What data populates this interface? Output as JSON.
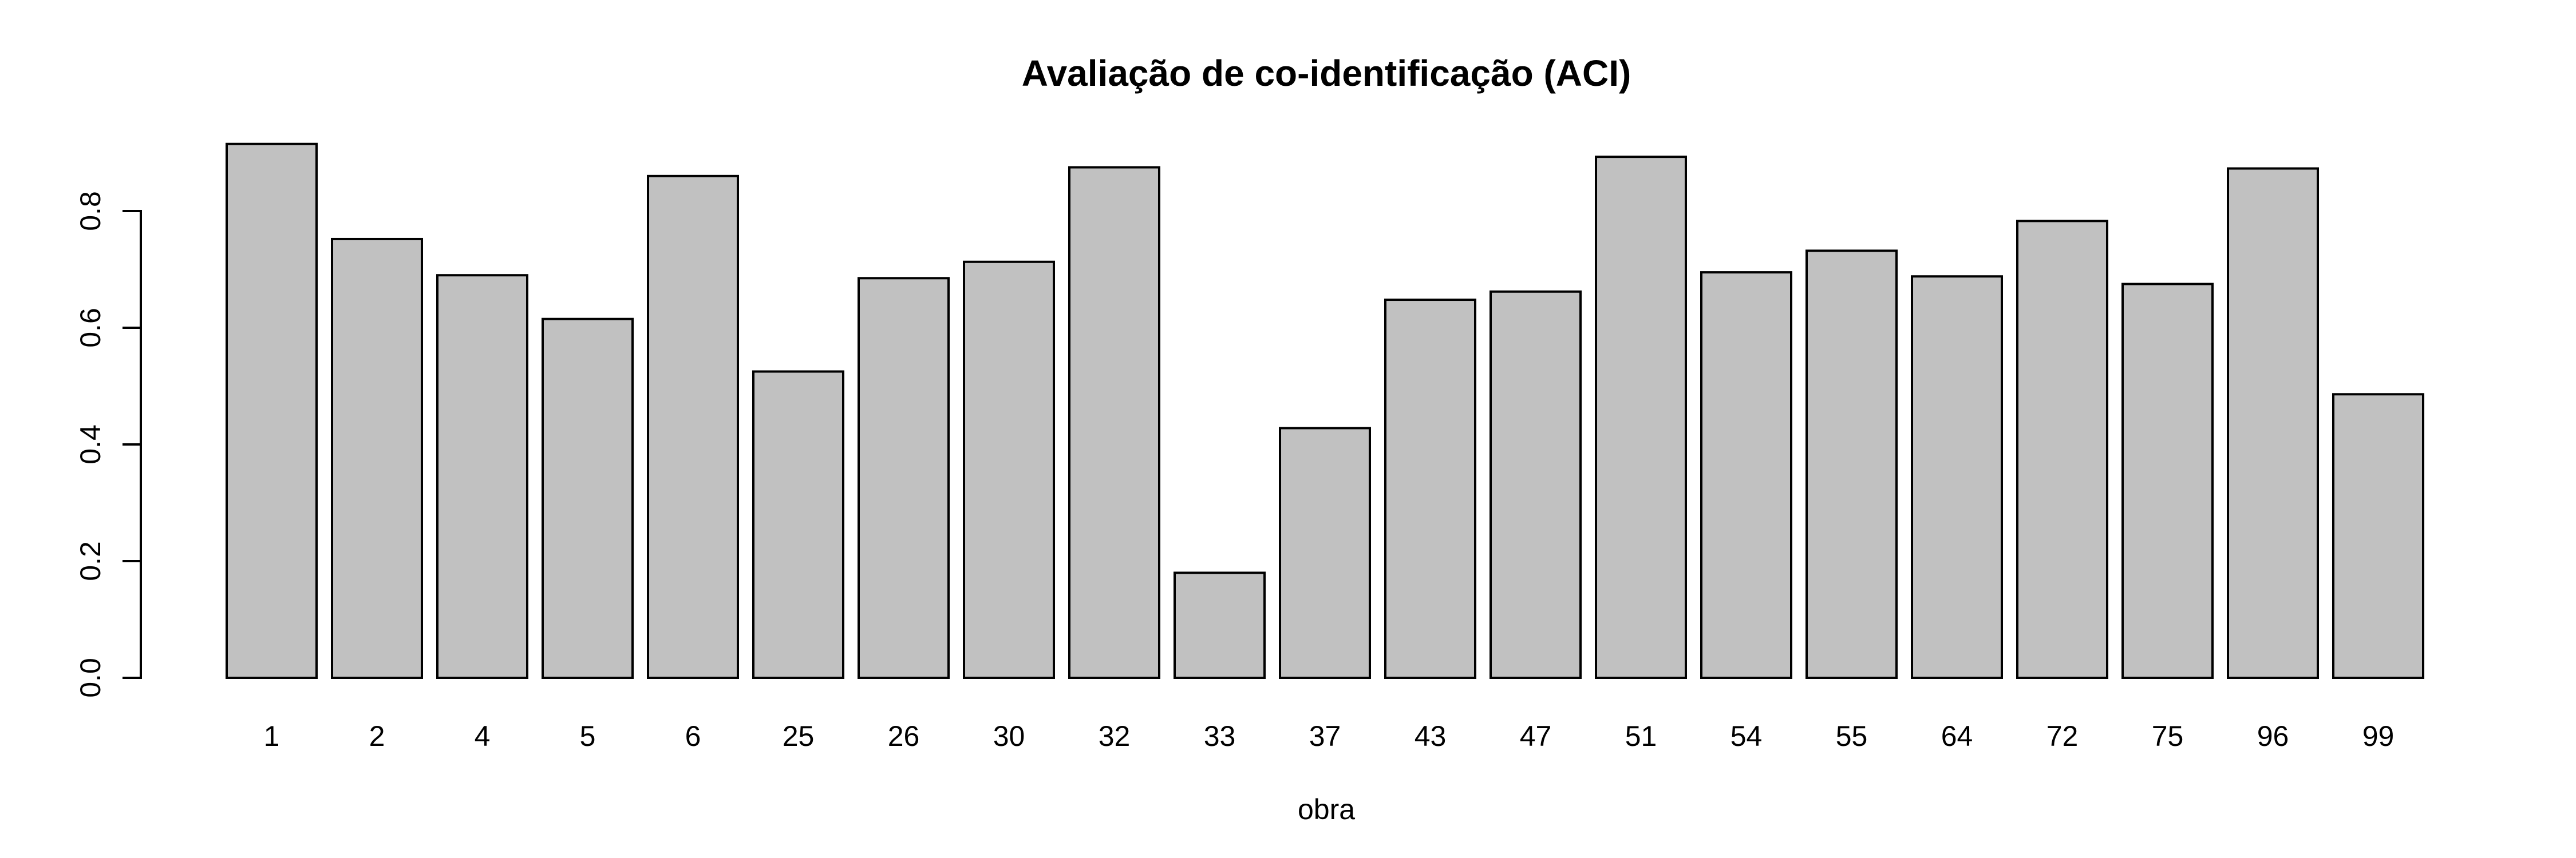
{
  "chart_data": {
    "type": "bar",
    "title": "Avaliação de co-identificação (ACI)",
    "xlabel": "obra",
    "ylabel": "",
    "categories": [
      "1",
      "2",
      "4",
      "5",
      "6",
      "25",
      "26",
      "30",
      "32",
      "33",
      "37",
      "43",
      "47",
      "51",
      "54",
      "55",
      "64",
      "72",
      "75",
      "96",
      "99"
    ],
    "values": [
      0.915,
      0.752,
      0.69,
      0.615,
      0.86,
      0.525,
      0.685,
      0.713,
      0.875,
      0.18,
      0.428,
      0.648,
      0.662,
      0.893,
      0.695,
      0.732,
      0.688,
      0.783,
      0.675,
      0.873,
      0.486
    ],
    "y_ticks": [
      0.0,
      0.2,
      0.4,
      0.6,
      0.8
    ],
    "y_tick_labels": [
      "0.0",
      "0.2",
      "0.4",
      "0.6",
      "0.8"
    ],
    "ylim": [
      0,
      0.92
    ],
    "grid": false,
    "legend": "none",
    "colors": {
      "background": "#ffffff",
      "bar_fill": "#c1c1c1",
      "bar_border": "#000000",
      "axis": "#000000",
      "text": "#000000"
    }
  }
}
